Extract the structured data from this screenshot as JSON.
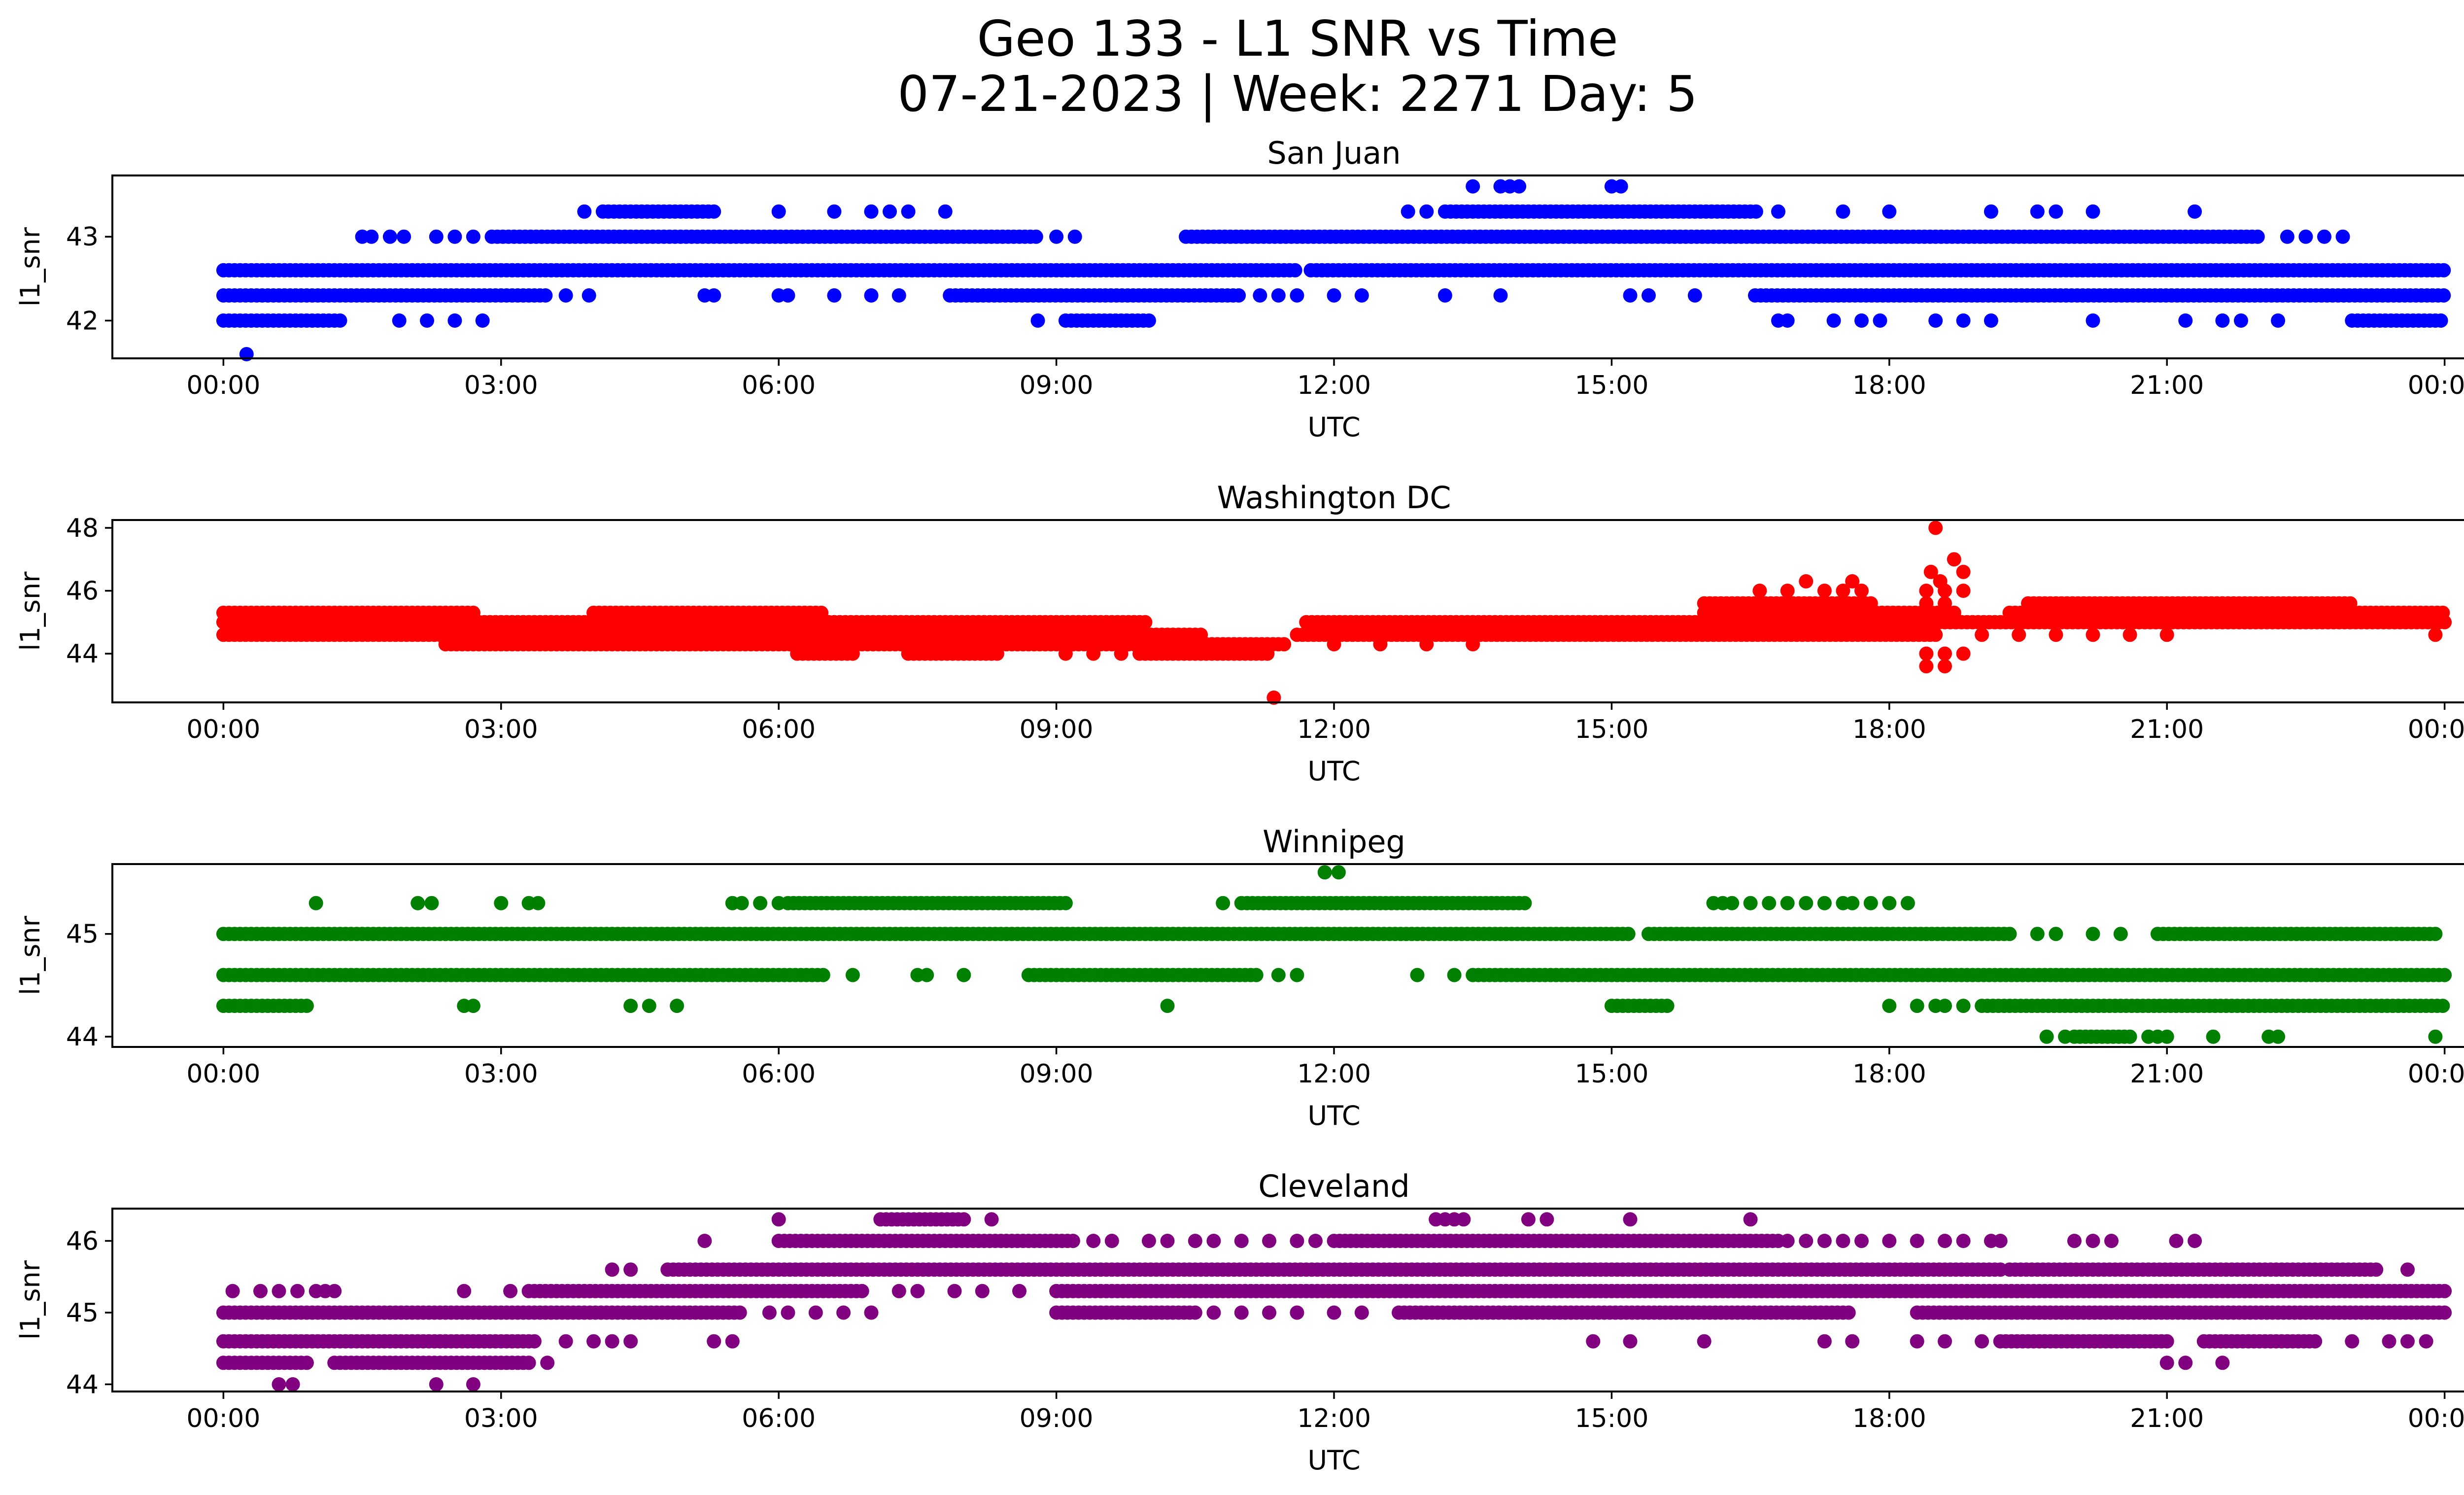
{
  "figure": {
    "title_line1": "Geo 133 - L1 SNR vs Time",
    "title_line2": "07-21-2023 | Week: 2271 Day: 5"
  },
  "chart_data": [
    {
      "type": "scatter",
      "title": "San Juan",
      "xlabel": "UTC",
      "ylabel": "l1_snr",
      "color": "#0000ff",
      "xticks": [
        "00:00",
        "03:00",
        "06:00",
        "09:00",
        "12:00",
        "15:00",
        "18:00",
        "21:00",
        "00:00"
      ],
      "xlim_hours": [
        -1.2,
        25.2
      ],
      "ylim": [
        41.55,
        43.73
      ],
      "yticks": [
        42,
        43
      ],
      "levels": [
        41.6,
        42.0,
        42.3,
        42.6,
        43.0,
        43.3,
        43.6
      ],
      "series": [
        {
          "y": 42.6,
          "segments": [
            [
              0.0,
              11.6
            ],
            [
              11.75,
              24.0
            ]
          ],
          "points": []
        },
        {
          "y": 42.3,
          "segments": [
            [
              0.0,
              3.5
            ],
            [
              7.85,
              11.0
            ],
            [
              16.55,
              24.0
            ]
          ],
          "points": [
            3.7,
            3.95,
            5.2,
            5.3,
            6.0,
            6.1,
            6.6,
            7.0,
            7.3,
            11.2,
            11.4,
            11.6,
            12.0,
            12.3,
            13.2,
            13.8,
            15.2,
            15.4,
            15.9
          ]
        },
        {
          "y": 42.0,
          "segments": [
            [
              0.0,
              1.3
            ],
            [
              9.1,
              10.0
            ],
            [
              23.0,
              24.0
            ]
          ],
          "points": [
            1.9,
            2.2,
            2.5,
            2.8,
            8.8,
            16.8,
            16.9,
            17.4,
            17.7,
            17.9,
            18.5,
            18.8,
            19.1,
            20.2,
            21.2,
            21.6,
            21.8,
            22.2
          ]
        },
        {
          "y": 41.6,
          "segments": [],
          "points": [
            0.25
          ]
        },
        {
          "y": 43.0,
          "segments": [
            [
              2.9,
              8.8
            ],
            [
              10.4,
              22.0
            ]
          ],
          "points": [
            1.5,
            1.6,
            1.8,
            1.95,
            2.3,
            2.5,
            2.7,
            9.0,
            9.2,
            22.3,
            22.5,
            22.7,
            22.9
          ]
        },
        {
          "y": 43.3,
          "segments": [
            [
              4.1,
              5.3
            ],
            [
              13.2,
              16.6
            ]
          ],
          "points": [
            3.9,
            6.0,
            6.6,
            7.0,
            7.2,
            7.4,
            7.8,
            12.8,
            13.0,
            16.8,
            17.5,
            18.0,
            19.1,
            19.6,
            19.8,
            20.2,
            21.3
          ]
        },
        {
          "y": 43.6,
          "segments": [],
          "points": [
            13.5,
            13.8,
            13.9,
            14.0,
            15.0,
            15.1
          ]
        }
      ]
    },
    {
      "type": "scatter",
      "title": "Washington DC",
      "xlabel": "UTC",
      "ylabel": "l1_snr",
      "color": "#ff0000",
      "xticks": [
        "00:00",
        "03:00",
        "06:00",
        "09:00",
        "12:00",
        "15:00",
        "18:00",
        "21:00",
        "00:00"
      ],
      "xlim_hours": [
        -1.2,
        25.2
      ],
      "ylim": [
        42.45,
        48.25
      ],
      "yticks": [
        44,
        46,
        48
      ],
      "levels": [
        42.6,
        43.6,
        44.0,
        44.3,
        44.6,
        45.0,
        45.3,
        45.6,
        46.0,
        46.3,
        46.6,
        47.0,
        48.0
      ],
      "series": [
        {
          "y": 45.3,
          "segments": [
            [
              0.0,
              2.7
            ],
            [
              4.0,
              6.5
            ],
            [
              16.0,
              18.7
            ],
            [
              19.3,
              24.0
            ]
          ],
          "points": []
        },
        {
          "y": 45.0,
          "segments": [
            [
              0.0,
              10.0
            ],
            [
              11.7,
              24.0
            ]
          ],
          "points": []
        },
        {
          "y": 44.6,
          "segments": [
            [
              0.0,
              10.6
            ],
            [
              11.6,
              18.5
            ]
          ],
          "points": [
            19.0,
            19.4,
            19.8,
            20.2,
            20.6,
            21.0,
            23.9
          ]
        },
        {
          "y": 44.3,
          "segments": [
            [
              2.4,
              11.5
            ]
          ],
          "points": [
            12.0,
            12.5,
            13.0,
            13.5
          ]
        },
        {
          "y": 44.0,
          "segments": [
            [
              6.2,
              6.8
            ],
            [
              7.4,
              8.4
            ],
            [
              9.9,
              11.3
            ]
          ],
          "points": [
            9.1,
            9.4,
            9.7,
            18.4,
            18.6,
            18.8
          ]
        },
        {
          "y": 45.6,
          "segments": [
            [
              16.0,
              17.8
            ],
            [
              19.5,
              23.0
            ]
          ],
          "points": [
            18.4,
            18.6
          ]
        },
        {
          "y": 46.0,
          "segments": [],
          "points": [
            16.6,
            16.9,
            17.3,
            17.5,
            17.7,
            18.4,
            18.6,
            18.8
          ]
        },
        {
          "y": 46.3,
          "segments": [],
          "points": [
            17.1,
            17.6,
            18.55
          ]
        },
        {
          "y": 46.6,
          "segments": [],
          "points": [
            18.45,
            18.8
          ]
        },
        {
          "y": 47.0,
          "segments": [],
          "points": [
            18.7
          ]
        },
        {
          "y": 43.6,
          "segments": [],
          "points": [
            18.4,
            18.6
          ]
        },
        {
          "y": 42.6,
          "segments": [],
          "points": [
            11.35
          ]
        },
        {
          "y": 48.0,
          "segments": [],
          "points": [
            18.5
          ]
        }
      ]
    },
    {
      "type": "scatter",
      "title": "Winnipeg",
      "xlabel": "UTC",
      "ylabel": "l1_snr",
      "color": "#008000",
      "xticks": [
        "00:00",
        "03:00",
        "06:00",
        "09:00",
        "12:00",
        "15:00",
        "18:00",
        "21:00",
        "00:00"
      ],
      "xlim_hours": [
        -1.2,
        25.2
      ],
      "ylim": [
        43.9,
        45.68
      ],
      "yticks": [
        44,
        45
      ],
      "levels": [
        44.0,
        44.3,
        44.6,
        45.0,
        45.3,
        45.6
      ],
      "series": [
        {
          "y": 45.0,
          "segments": [
            [
              0.0,
              15.2
            ],
            [
              15.4,
              19.3
            ],
            [
              20.9,
              23.9
            ]
          ],
          "points": [
            19.6,
            19.8,
            20.2,
            20.5
          ]
        },
        {
          "y": 44.6,
          "segments": [
            [
              0.0,
              6.5
            ],
            [
              8.7,
              11.2
            ],
            [
              13.5,
              24.0
            ]
          ],
          "points": [
            6.8,
            7.5,
            7.6,
            8.0,
            11.4,
            11.6,
            12.9,
            13.3
          ]
        },
        {
          "y": 44.3,
          "segments": [
            [
              0.0,
              0.9
            ],
            [
              15.0,
              15.6
            ],
            [
              19.0,
              24.0
            ]
          ],
          "points": [
            2.6,
            2.7,
            4.4,
            4.6,
            4.9,
            10.2,
            18.0,
            18.3,
            18.5,
            18.6,
            18.8
          ]
        },
        {
          "y": 44.0,
          "segments": [
            [
              20.0,
              20.6
            ]
          ],
          "points": [
            19.7,
            19.9,
            20.8,
            20.9,
            21.0,
            21.5,
            22.1,
            22.2,
            23.9
          ]
        },
        {
          "y": 45.3,
          "segments": [
            [
              6.1,
              9.1
            ],
            [
              11.0,
              14.1
            ]
          ],
          "points": [
            1.0,
            2.1,
            2.25,
            3.0,
            3.3,
            3.4,
            5.5,
            5.6,
            5.8,
            6.0,
            10.8,
            16.1,
            16.2,
            16.3,
            16.5,
            16.7,
            16.9,
            17.1,
            17.3,
            17.5,
            17.6,
            17.8,
            18.0,
            18.2
          ]
        },
        {
          "y": 45.6,
          "segments": [],
          "points": [
            11.9,
            12.05
          ]
        }
      ]
    },
    {
      "type": "scatter",
      "title": "Cleveland",
      "xlabel": "UTC",
      "ylabel": "l1_snr",
      "color": "#800080",
      "xticks": [
        "00:00",
        "03:00",
        "06:00",
        "09:00",
        "12:00",
        "15:00",
        "18:00",
        "21:00",
        "00:00"
      ],
      "xlim_hours": [
        -1.2,
        25.2
      ],
      "ylim": [
        43.9,
        46.45
      ],
      "yticks": [
        44,
        45,
        46
      ],
      "levels": [
        44.0,
        44.3,
        44.6,
        45.0,
        45.3,
        45.6,
        46.0,
        46.3
      ],
      "series": [
        {
          "y": 45.3,
          "segments": [
            [
              3.3,
              6.9
            ],
            [
              9.0,
              24.0
            ]
          ],
          "points": [
            0.1,
            0.4,
            0.6,
            0.8,
            1.0,
            1.1,
            1.2,
            2.6,
            3.1,
            7.3,
            7.5,
            7.9,
            8.2,
            8.6
          ]
        },
        {
          "y": 45.0,
          "segments": [
            [
              0.0,
              5.6
            ],
            [
              9.0,
              10.5
            ],
            [
              12.7,
              17.6
            ],
            [
              18.3,
              24.0
            ]
          ],
          "points": [
            5.9,
            6.1,
            6.4,
            6.7,
            7.0,
            10.7,
            11.0,
            11.3,
            11.6,
            12.0,
            12.3
          ]
        },
        {
          "y": 44.6,
          "segments": [
            [
              0.0,
              3.4
            ],
            [
              19.2,
              21.0
            ],
            [
              21.4,
              22.6
            ]
          ],
          "points": [
            3.7,
            4.0,
            4.2,
            4.4,
            5.3,
            5.5,
            14.8,
            15.2,
            16.0,
            17.3,
            17.6,
            18.3,
            18.6,
            19.0,
            23.0,
            23.4,
            23.6,
            23.8
          ]
        },
        {
          "y": 44.3,
          "segments": [
            [
              0.0,
              0.9
            ],
            [
              1.2,
              3.3
            ]
          ],
          "points": [
            3.5,
            21.0,
            21.2,
            21.6
          ]
        },
        {
          "y": 44.0,
          "segments": [],
          "points": [
            0.6,
            0.75,
            2.3,
            2.7
          ]
        },
        {
          "y": 45.6,
          "segments": [
            [
              4.8,
              19.2
            ],
            [
              19.3,
              23.3
            ]
          ],
          "points": [
            4.2,
            4.4,
            23.6
          ]
        },
        {
          "y": 46.0,
          "segments": [
            [
              6.0,
              9.2
            ],
            [
              12.0,
              16.8
            ]
          ],
          "points": [
            5.2,
            9.4,
            9.6,
            10.0,
            10.2,
            10.5,
            10.7,
            11.0,
            11.3,
            11.6,
            11.8,
            16.9,
            17.1,
            17.3,
            17.5,
            17.7,
            18.0,
            18.3,
            18.6,
            18.8,
            19.1,
            19.2,
            20.0,
            20.2,
            20.4,
            21.1,
            21.3
          ]
        },
        {
          "y": 46.3,
          "segments": [
            [
              7.1,
              8.0
            ]
          ],
          "points": [
            6.0,
            8.3,
            13.1,
            13.2,
            13.3,
            13.4,
            14.1,
            14.3,
            15.2,
            16.5
          ]
        }
      ]
    }
  ]
}
